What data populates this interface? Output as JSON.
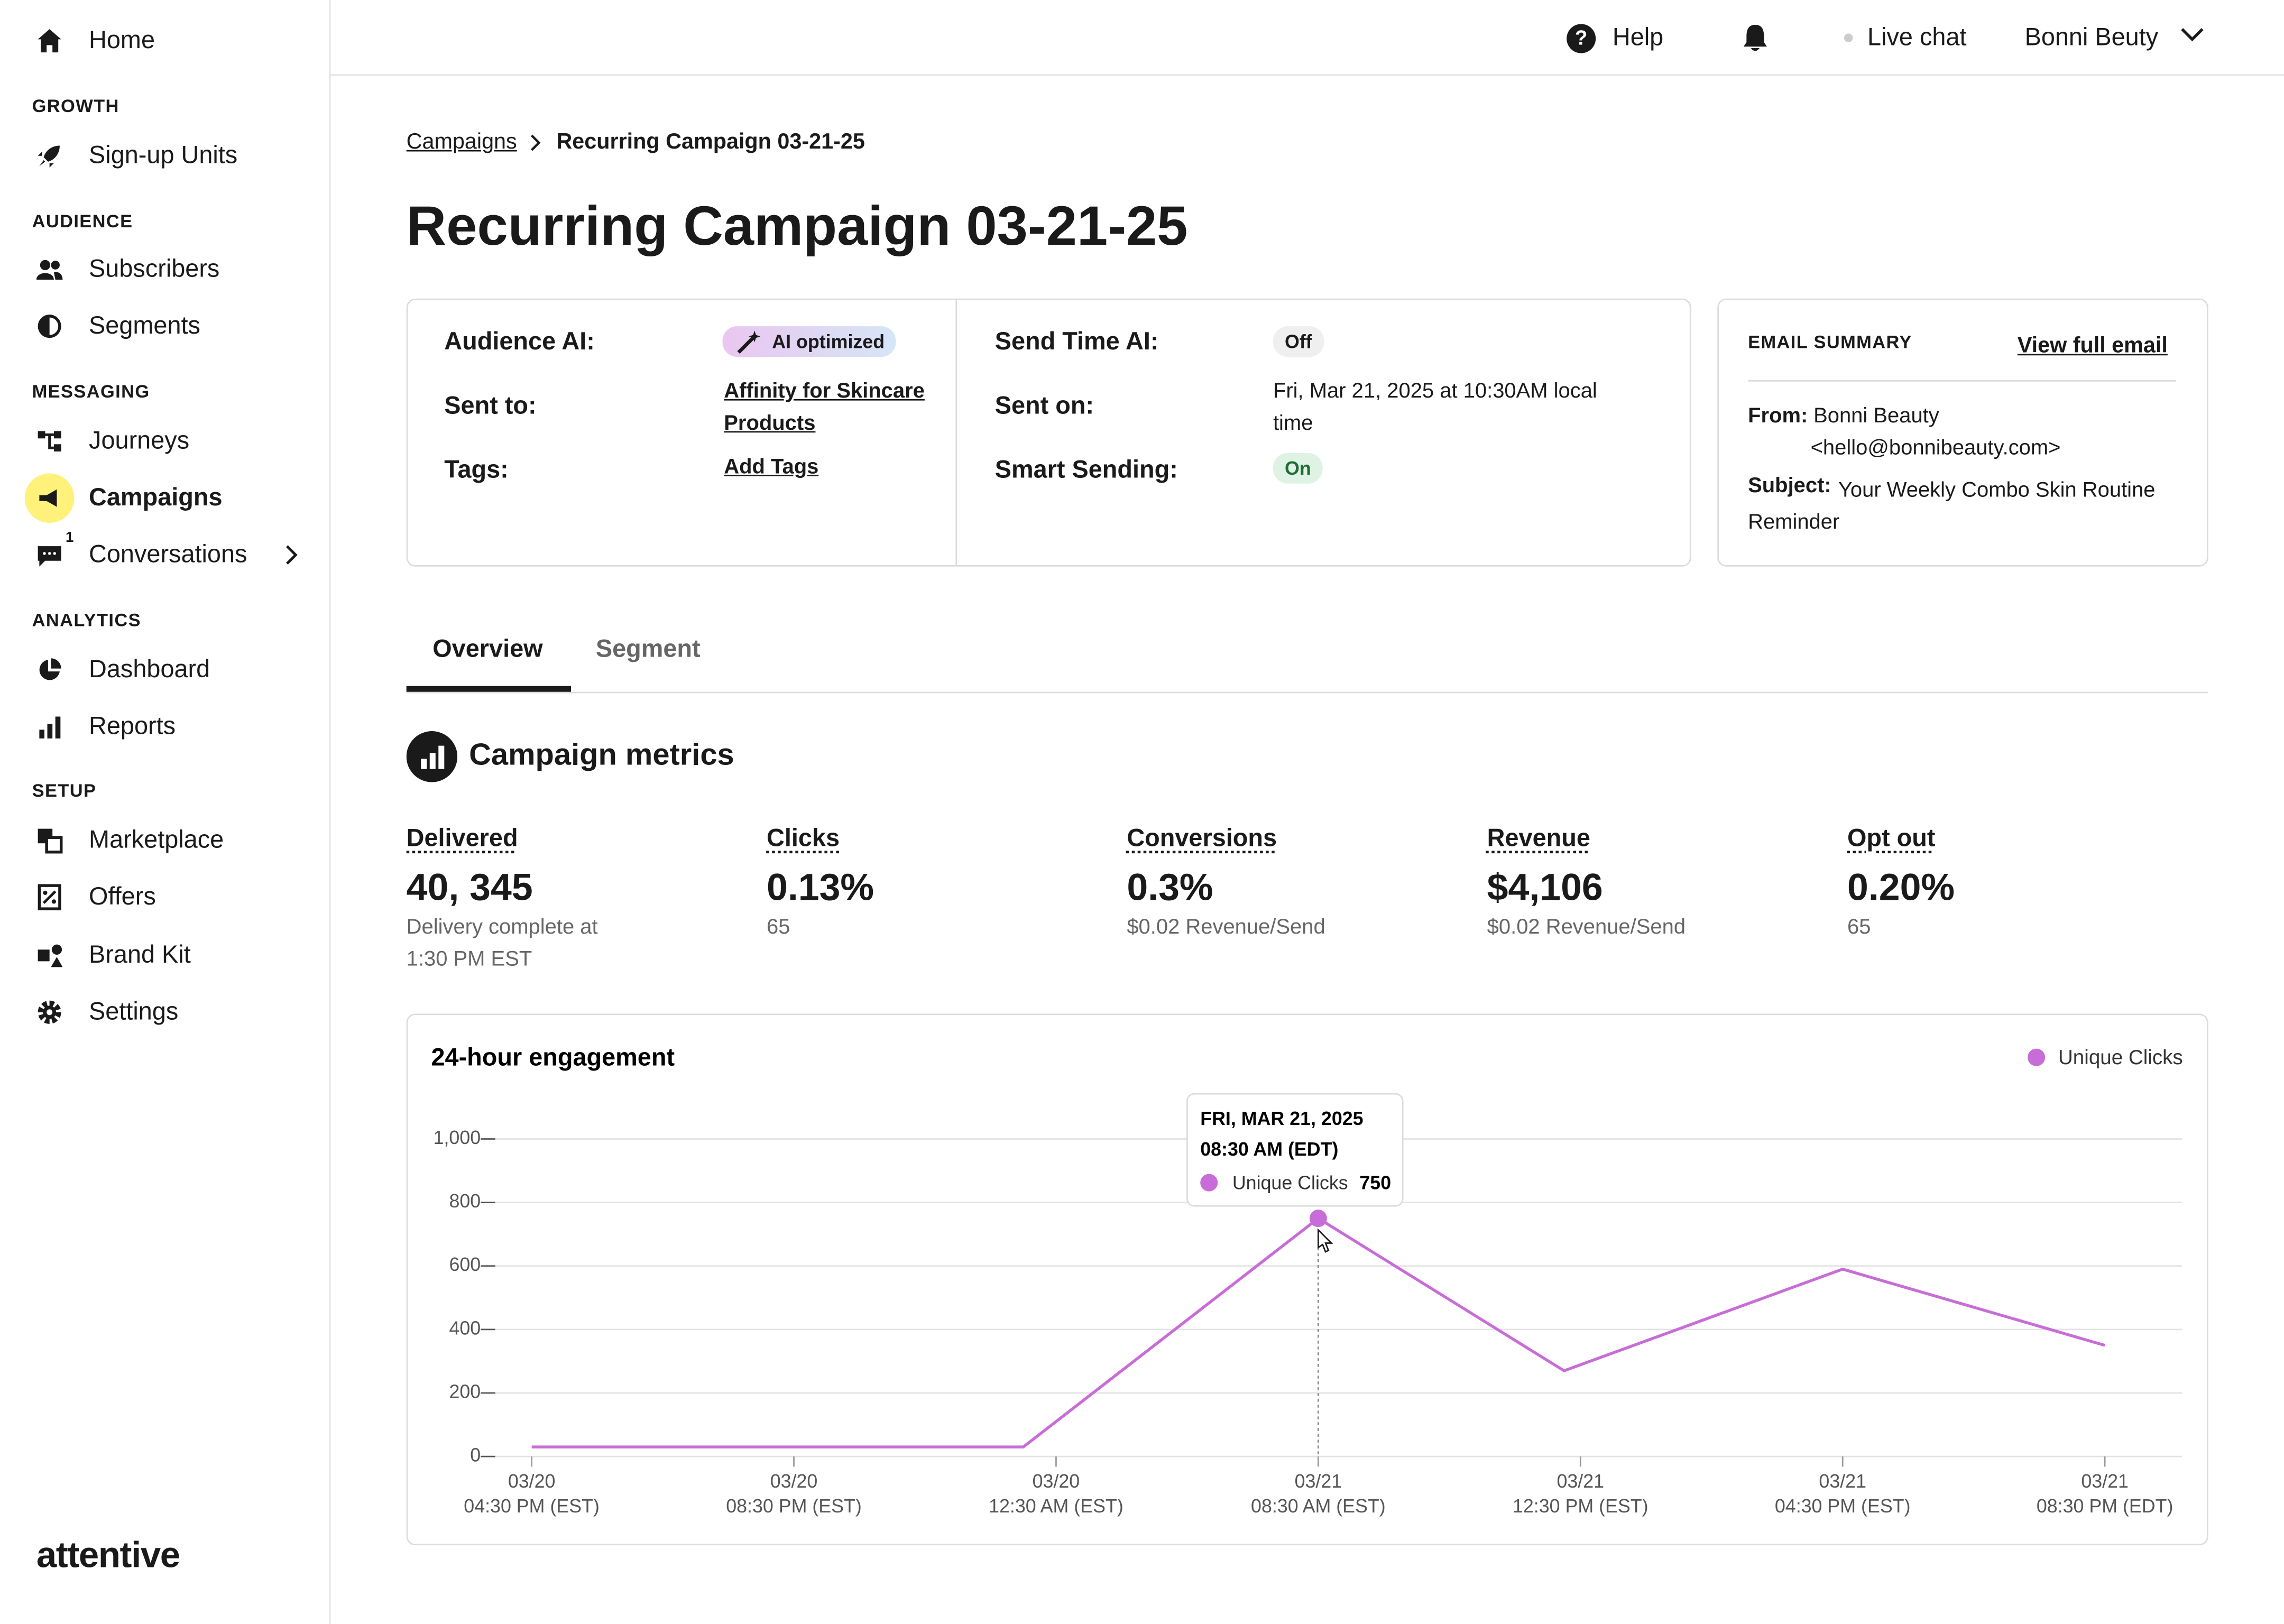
{
  "nav": [
    {
      "kind": "item",
      "label": "Home",
      "icon": "home"
    },
    {
      "kind": "section",
      "label": "GROWTH"
    },
    {
      "kind": "item",
      "label": "Sign-up Units",
      "icon": "rocket"
    },
    {
      "kind": "section",
      "label": "AUDIENCE"
    },
    {
      "kind": "item",
      "label": "Subscribers",
      "icon": "people"
    },
    {
      "kind": "item",
      "label": "Segments",
      "icon": "half"
    },
    {
      "kind": "section",
      "label": "MESSAGING"
    },
    {
      "kind": "item",
      "label": "Journeys",
      "icon": "flow"
    },
    {
      "kind": "item",
      "label": "Campaigns",
      "icon": "megaphone",
      "active": true
    },
    {
      "kind": "item",
      "label": "Conversations",
      "icon": "chat",
      "badge": "1",
      "chevron": true
    },
    {
      "kind": "section",
      "label": "ANALYTICS"
    },
    {
      "kind": "item",
      "label": "Dashboard",
      "icon": "pie"
    },
    {
      "kind": "item",
      "label": "Reports",
      "icon": "bars"
    },
    {
      "kind": "section",
      "label": "SETUP"
    },
    {
      "kind": "item",
      "label": "Marketplace",
      "icon": "squares"
    },
    {
      "kind": "item",
      "label": "Offers",
      "icon": "offer"
    },
    {
      "kind": "item",
      "label": "Brand Kit",
      "icon": "shapes"
    },
    {
      "kind": "item",
      "label": "Settings",
      "icon": "gear"
    }
  ],
  "logo": "attentive",
  "header": {
    "help": "Help",
    "live_chat": "Live chat",
    "user": "Bonni Beuty"
  },
  "breadcrumb": {
    "parent": "Campaigns",
    "current": "Recurring Campaign 03-21-25"
  },
  "title": "Recurring Campaign 03-21-25",
  "details": {
    "audience_ai": {
      "label": "Audience AI:",
      "value": "AI optimized"
    },
    "sent_to": {
      "label": "Sent to:",
      "value": "Affinity for Skincare Products"
    },
    "tags": {
      "label": "Tags:",
      "value": "Add Tags"
    },
    "send_time_ai": {
      "label": "Send Time AI:",
      "value": "Off"
    },
    "sent_on": {
      "label": "Sent on:",
      "value": "Fri, Mar 21, 2025 at 10:30AM local time"
    },
    "smart_sending": {
      "label": "Smart Sending:",
      "value": "On"
    }
  },
  "email_summary": {
    "heading": "EMAIL SUMMARY",
    "link": "View full email",
    "from_label": "From:",
    "from_name": "Bonni Beauty",
    "from_email": "<hello@bonnibeauty.com>",
    "subject_label": "Subject:",
    "subject": "Your Weekly Combo Skin Routine Reminder"
  },
  "tabs": [
    "Overview",
    "Segment"
  ],
  "metrics_title": "Campaign metrics",
  "metrics": [
    {
      "label": "Delivered",
      "value": "40, 345",
      "sub": "Delivery complete at 1:30 PM EST"
    },
    {
      "label": "Clicks",
      "value": "0.13%",
      "sub": "65"
    },
    {
      "label": "Conversions",
      "value": "0.3%",
      "sub": "$0.02 Revenue/Send"
    },
    {
      "label": "Revenue",
      "value": "$4,106",
      "sub": "$0.02 Revenue/Send"
    },
    {
      "label": "Opt out",
      "value": "0.20%",
      "sub": "65"
    }
  ],
  "chart": {
    "type": "line",
    "title": "24-hour engagement",
    "x": [
      0,
      7.5,
      12,
      15.75,
      20,
      24
    ],
    "series": [
      {
        "name": "Unique Clicks",
        "color": "#c86dd7",
        "values": [
          30,
          30,
          750,
          270,
          590,
          350
        ]
      }
    ],
    "xlim": [
      0,
      24
    ],
    "ylim": [
      0,
      1000
    ],
    "xticks": [
      {
        "value": 0,
        "label": "03/20",
        "sublabel": "04:30 PM (EST)"
      },
      {
        "value": 4,
        "label": "03/20",
        "sublabel": "08:30 PM (EST)"
      },
      {
        "value": 8,
        "label": "03/20",
        "sublabel": "12:30 AM (EST)"
      },
      {
        "value": 12,
        "label": "03/21",
        "sublabel": "08:30 AM (EST)"
      },
      {
        "value": 16,
        "label": "03/21",
        "sublabel": "12:30 PM (EST)"
      },
      {
        "value": 20,
        "label": "03/21",
        "sublabel": "04:30 PM (EST)"
      },
      {
        "value": 24,
        "label": "03/21",
        "sublabel": "08:30 PM (EDT)"
      }
    ],
    "yticks": [
      0,
      200,
      400,
      600,
      800,
      {
        "value": 1000,
        "label": "1,000"
      }
    ],
    "grid": true,
    "legend": "top-right",
    "tooltip": {
      "index": 2,
      "date": "FRI, MAR 21, 2025",
      "time": "08:30 AM (EDT)"
    }
  }
}
